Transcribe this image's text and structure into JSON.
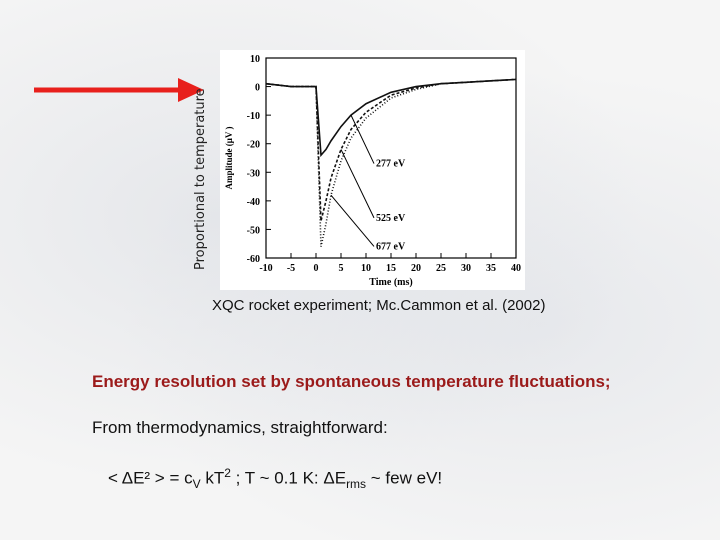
{
  "slide": {
    "ylabel_rotated": "Proportional to temperature",
    "caption": "XQC rocket experiment; Mc.Cammon et al. (2002)",
    "line1": "Energy resolution set by spontaneous temperature fluctuations;",
    "line2": "From thermodynamics, straightforward:",
    "line3_a": "< ΔE² > = c",
    "line3_sub_v": "V",
    "line3_b": " kT",
    "line3_sup_2": "2",
    "line3_c": "  ;  T ~ 0.1 K: ΔE",
    "line3_sub_rms": "rms",
    "line3_d": " ~ few eV!",
    "arrow_color": "#e8201c",
    "text_color_emphasis": "#9b1a1a"
  },
  "chart_data": {
    "type": "line",
    "xlabel": "Time (ms)",
    "ylabel": "Amplitude (μV )",
    "xlim": [
      -10,
      40
    ],
    "ylim": [
      -60,
      10
    ],
    "xticks": [
      -10,
      -5,
      0,
      5,
      10,
      15,
      20,
      25,
      30,
      35,
      40
    ],
    "yticks": [
      10,
      0,
      -10,
      -20,
      -30,
      -40,
      -50,
      -60
    ],
    "series": [
      {
        "name": "277 eV",
        "x": [
          -10,
          -5,
          0,
          1,
          2,
          3,
          5,
          7,
          10,
          15,
          20,
          25,
          30,
          35,
          40
        ],
        "y": [
          1,
          0,
          0,
          -24,
          -22,
          -19,
          -14,
          -10,
          -6,
          -2,
          0,
          1,
          1.5,
          2,
          2.5
        ]
      },
      {
        "name": "525 eV",
        "x": [
          -10,
          -5,
          0,
          1,
          2,
          3,
          5,
          7,
          10,
          15,
          20,
          25,
          30,
          35,
          40
        ],
        "y": [
          1,
          0,
          0,
          -47,
          -40,
          -32,
          -22,
          -15,
          -9,
          -3,
          -0.5,
          1,
          1.5,
          2,
          2.5
        ]
      },
      {
        "name": "677 eV",
        "x": [
          -10,
          -5,
          0,
          1,
          2,
          3,
          5,
          7,
          10,
          15,
          20,
          25,
          30,
          35,
          40
        ],
        "y": [
          1,
          0,
          0,
          -56,
          -48,
          -38,
          -26,
          -18,
          -11,
          -4,
          -1,
          1,
          1.5,
          2,
          2.5
        ]
      }
    ],
    "annotations": [
      "277 eV",
      "525 eV",
      "677 eV"
    ]
  }
}
